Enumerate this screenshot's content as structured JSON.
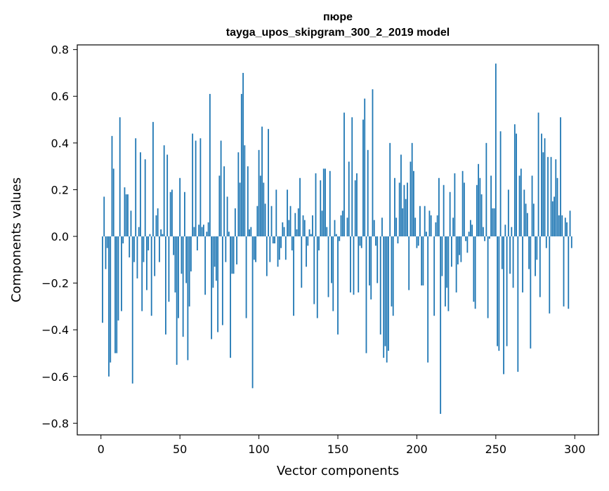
{
  "chart_data": {
    "type": "bar",
    "title_line1": "пюре",
    "title_line2": "tayga_upos_skipgram_300_2_2019 model",
    "xlabel": "Vector components",
    "ylabel": "Components values",
    "xlim": [
      -15,
      315
    ],
    "ylim": [
      -0.85,
      0.82
    ],
    "xticks": [
      0,
      50,
      100,
      150,
      200,
      250,
      300
    ],
    "xtick_labels": [
      "0",
      "50",
      "100",
      "150",
      "200",
      "250",
      "300"
    ],
    "yticks": [
      0.8,
      0.6,
      0.4,
      0.2,
      0.0,
      -0.2,
      -0.4,
      -0.6,
      -0.8
    ],
    "ytick_labels": [
      "0.8",
      "0.6",
      "0.4",
      "0.2",
      "0.0",
      "−0.2",
      "−0.4",
      "−0.6",
      "−0.8"
    ],
    "bar_color": "#1f77b4",
    "values": [
      0.0,
      -0.37,
      0.17,
      -0.14,
      -0.05,
      -0.6,
      -0.54,
      0.43,
      0.29,
      -0.5,
      -0.5,
      -0.36,
      0.51,
      -0.32,
      -0.03,
      0.21,
      0.18,
      0.18,
      -0.09,
      0.11,
      -0.63,
      -0.11,
      0.42,
      -0.18,
      0.04,
      0.36,
      -0.32,
      -0.11,
      0.33,
      -0.23,
      -0.06,
      0.01,
      -0.34,
      0.49,
      -0.17,
      0.09,
      0.12,
      -0.11,
      0.03,
      0.01,
      0.39,
      -0.42,
      0.35,
      -0.28,
      0.19,
      0.2,
      -0.08,
      -0.24,
      -0.55,
      -0.35,
      0.25,
      -0.16,
      -0.43,
      0.19,
      -0.2,
      -0.53,
      -0.3,
      -0.15,
      0.44,
      0.04,
      0.41,
      -0.06,
      0.05,
      0.42,
      0.04,
      0.05,
      -0.25,
      0.02,
      0.06,
      0.61,
      -0.44,
      -0.22,
      -0.13,
      -0.19,
      -0.41,
      0.26,
      0.41,
      -0.38,
      0.3,
      -0.11,
      0.17,
      0.02,
      -0.52,
      -0.16,
      -0.16,
      0.12,
      -0.12,
      0.36,
      0.23,
      0.61,
      0.7,
      0.39,
      -0.35,
      0.3,
      0.03,
      0.04,
      -0.65,
      -0.1,
      -0.11,
      0.13,
      0.37,
      0.26,
      0.47,
      0.23,
      0.14,
      -0.17,
      0.46,
      -0.11,
      0.13,
      -0.03,
      -0.03,
      0.2,
      -0.13,
      -0.1,
      -0.05,
      0.06,
      0.04,
      -0.1,
      0.2,
      0.07,
      0.13,
      -0.06,
      -0.34,
      0.1,
      0.03,
      0.12,
      0.25,
      -0.22,
      0.09,
      0.07,
      -0.13,
      -0.04,
      0.03,
      0.01,
      0.09,
      -0.29,
      0.27,
      -0.35,
      -0.06,
      0.24,
      0.11,
      0.29,
      0.29,
      0.04,
      -0.26,
      0.28,
      -0.2,
      -0.32,
      0.07,
      0.01,
      -0.42,
      -0.02,
      0.09,
      0.11,
      0.53,
      0.0,
      0.08,
      0.32,
      -0.24,
      0.51,
      -0.25,
      0.24,
      0.27,
      -0.24,
      -0.04,
      -0.05,
      0.5,
      0.59,
      -0.5,
      0.37,
      -0.21,
      -0.27,
      0.63,
      0.07,
      -0.04,
      -0.2,
      0.0,
      -0.42,
      0.08,
      -0.52,
      -0.47,
      -0.54,
      -0.49,
      0.4,
      -0.3,
      -0.34,
      0.25,
      0.08,
      -0.03,
      0.23,
      0.35,
      0.12,
      0.22,
      0.16,
      0.23,
      -0.23,
      0.32,
      0.4,
      0.28,
      0.08,
      -0.05,
      -0.04,
      0.13,
      -0.21,
      -0.21,
      0.13,
      0.02,
      -0.54,
      0.11,
      0.09,
      0.0,
      -0.34,
      0.06,
      0.09,
      0.25,
      -0.76,
      -0.17,
      0.22,
      -0.3,
      -0.22,
      -0.32,
      0.19,
      -0.13,
      0.08,
      0.27,
      -0.24,
      -0.12,
      -0.08,
      -0.11,
      0.28,
      0.23,
      -0.02,
      -0.07,
      0.02,
      0.07,
      0.05,
      -0.28,
      -0.31,
      0.22,
      0.31,
      0.25,
      0.18,
      0.04,
      -0.02,
      0.4,
      -0.35,
      -0.01,
      0.26,
      0.12,
      0.12,
      0.74,
      -0.47,
      -0.49,
      0.45,
      -0.14,
      -0.59,
      0.05,
      -0.47,
      0.2,
      -0.16,
      0.04,
      -0.22,
      0.48,
      0.44,
      -0.58,
      0.26,
      0.29,
      -0.24,
      0.2,
      0.14,
      0.1,
      -0.14,
      -0.48,
      0.26,
      0.14,
      -0.17,
      -0.1,
      0.53,
      -0.26,
      0.44,
      0.36,
      0.42,
      -0.05,
      0.34,
      -0.33,
      0.34,
      0.15,
      0.17,
      0.33,
      0.25,
      0.09,
      0.51,
      0.09,
      -0.3,
      0.08,
      0.06,
      -0.31,
      0.11,
      -0.05
    ]
  }
}
